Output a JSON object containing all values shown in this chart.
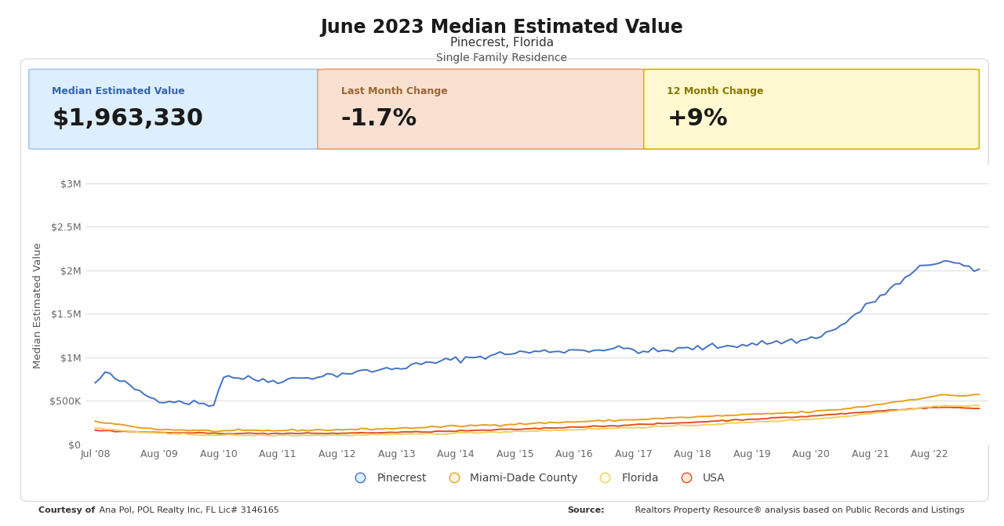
{
  "title": "June 2023 Median Estimated Value",
  "subtitle": "Pinecrest, Florida",
  "subtitle2": "Single Family Residence",
  "stat1_label": "Median Estimated Value",
  "stat1_value": "$1,963,330",
  "stat2_label": "Last Month Change",
  "stat2_value": "-1.7%",
  "stat3_label": "12 Month Change",
  "stat3_value": "+9%",
  "ylabel": "Median Estimated Value",
  "yticks": [
    0,
    500000,
    1000000,
    1500000,
    2000000,
    2500000,
    3000000
  ],
  "ytick_labels": [
    "$0",
    "$500K",
    "$1M",
    "$1.5M",
    "$2M",
    "$2.5M",
    "$3M"
  ],
  "xtick_labels": [
    "Jul '08",
    "Aug '09",
    "Aug '10",
    "Aug '11",
    "Aug '12",
    "Aug '13",
    "Aug '14",
    "Aug '15",
    "Aug '16",
    "Aug '17",
    "Aug '18",
    "Aug '19",
    "Aug '20",
    "Aug '21",
    "Aug '22"
  ],
  "legend_labels": [
    "Pinecrest",
    "Miami-Dade County",
    "Florida",
    "USA"
  ],
  "line_colors": [
    "#4472C4",
    "#E8A020",
    "#F0D060",
    "#E05020"
  ],
  "background_color": "#FFFFFF",
  "footer_left_bold": "Courtesy of",
  "footer_left_normal": " Ana Pol, POL Realty Inc, FL Lic# 3146165",
  "footer_right_bold": "Source:",
  "footer_right_normal": " Realtors Property Resource® analysis based on Public Records and Listings",
  "stat1_bg": "#DDEEFF",
  "stat1_border": "#A8C8E8",
  "stat2_bg": "#FAE0D0",
  "stat2_border": "#E8A070",
  "stat3_bg": "#FFF8D0",
  "stat3_border": "#D4B800",
  "panel_border": "#DDDDDD",
  "grid_color": "#DDDDDD",
  "tick_color": "#666666",
  "ylabel_color": "#555555"
}
